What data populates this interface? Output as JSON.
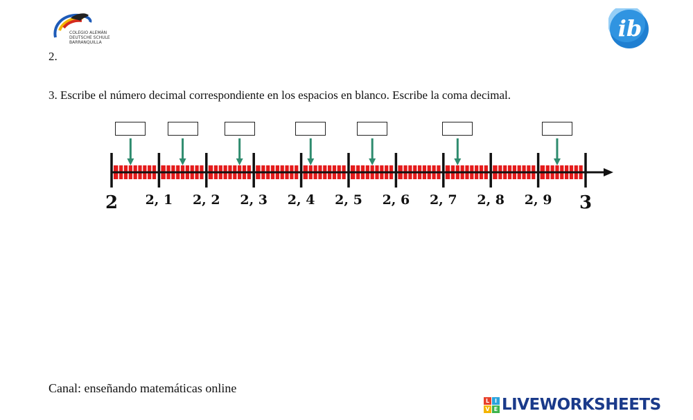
{
  "header": {
    "school_logo": {
      "icon": "salamander-logo-icon",
      "lines": [
        "COLEGIO ALEMÁN",
        "DEUTSCHE SCHULE",
        "BARRANQUILLA"
      ]
    },
    "ib_logo": {
      "icon": "ib-logo-icon",
      "text": "ib"
    }
  },
  "exercise": {
    "item2_label": "2.",
    "item3_instruction": "3. Escribe el número decimal correspondiente en los espacios en blanco. Escribe la coma decimal."
  },
  "number_line": {
    "ticks": [
      {
        "value": 2.0,
        "label": "2"
      },
      {
        "value": 2.1,
        "label": "2, 1"
      },
      {
        "value": 2.2,
        "label": "2, 2"
      },
      {
        "value": 2.3,
        "label": "2, 3"
      },
      {
        "value": 2.4,
        "label": "2, 4"
      },
      {
        "value": 2.5,
        "label": "2, 5"
      },
      {
        "value": 2.6,
        "label": "2, 6"
      },
      {
        "value": 2.7,
        "label": "2, 7"
      },
      {
        "value": 2.8,
        "label": "2, 8"
      },
      {
        "value": 2.9,
        "label": "2, 9"
      },
      {
        "value": 3.0,
        "label": "3"
      }
    ],
    "answer_points": [
      2.04,
      2.15,
      2.27,
      2.42,
      2.55,
      2.73,
      2.94
    ],
    "colors": {
      "segment_fill": "#e41b1b",
      "arrow": "#2e8b6e",
      "axis": "#111111"
    }
  },
  "answers": [
    "",
    "",
    "",
    "",
    "",
    "",
    ""
  ],
  "footer": {
    "channel_text": "Canal: enseñando matemáticas online",
    "brand_letters": [
      "L",
      "I",
      "V",
      "E"
    ],
    "brand_colors": [
      "#e8412b",
      "#2aa3dc",
      "#f4b400",
      "#3cb44b"
    ],
    "brand_name": "LIVEWORKSHEETS"
  }
}
